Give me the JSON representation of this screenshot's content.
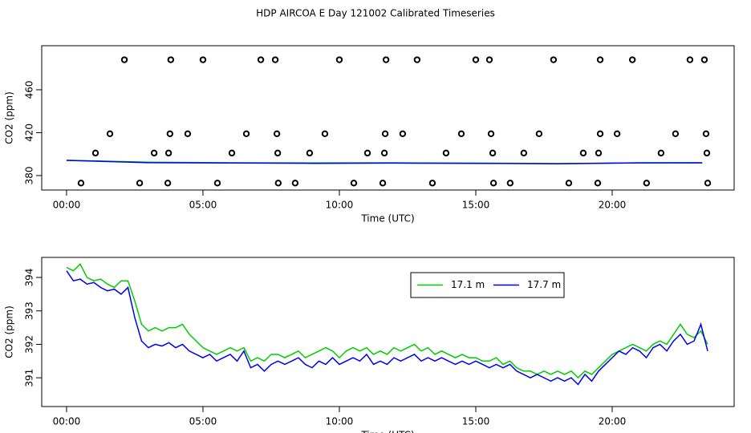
{
  "title": "HDP AIRCOA E  Day 121002  Calibrated Timeseries",
  "chart_data": [
    {
      "type": "line",
      "x_label": "Time (UTC)",
      "y_label": "CO2 (ppm)",
      "xlim": [
        -0.91,
        24.47
      ],
      "ylim": [
        366.5,
        501.1
      ],
      "xticks": [
        {
          "value": 0,
          "label": "00:00"
        },
        {
          "value": 5,
          "label": "05:00"
        },
        {
          "value": 10,
          "label": "10:00"
        },
        {
          "value": 15,
          "label": "15:00"
        },
        {
          "value": 20,
          "label": "20:00"
        }
      ],
      "yticks": [
        380,
        420,
        460
      ],
      "series": [
        {
          "type": "line",
          "color": "#00cc00",
          "x": [
            0,
            3,
            6,
            9,
            12,
            15,
            18,
            21,
            23.3
          ],
          "values": [
            394.3,
            392.5,
            391.9,
            391.8,
            391.9,
            391.6,
            391.2,
            391.9,
            392.0
          ]
        },
        {
          "type": "line",
          "color": "#0000ee",
          "x": [
            0,
            3,
            6,
            9,
            12,
            15,
            18,
            21,
            23.3
          ],
          "values": [
            394.2,
            392.0,
            391.7,
            391.4,
            391.6,
            391.4,
            391.0,
            391.8,
            391.8
          ]
        },
        {
          "type": "scatter",
          "color": "#000000",
          "x": [
            2.12,
            3.82,
            5.0,
            7.12,
            7.65,
            10.0,
            11.71,
            12.85,
            15.0,
            15.5,
            17.85,
            19.56,
            20.74,
            22.85,
            23.38,
            1.59,
            3.79,
            4.44,
            6.59,
            7.71,
            9.47,
            11.68,
            12.32,
            14.47,
            15.56,
            17.32,
            19.56,
            20.18,
            22.32,
            23.44,
            1.06,
            3.21,
            3.74,
            6.06,
            7.74,
            8.91,
            11.03,
            11.65,
            13.91,
            15.62,
            16.76,
            18.94,
            19.5,
            21.79,
            23.47,
            0.53,
            2.68,
            3.71,
            5.53,
            7.76,
            8.38,
            10.53,
            11.59,
            13.41,
            15.65,
            16.26,
            18.41,
            19.47,
            21.26,
            23.5
          ],
          "values": [
            488,
            488,
            488,
            488,
            488,
            488,
            488,
            488,
            488,
            488,
            488,
            488,
            488,
            488,
            488,
            419,
            419,
            419,
            419,
            419,
            419,
            419,
            419,
            419,
            419,
            419,
            419,
            419,
            419,
            419,
            401,
            401,
            401,
            401,
            401,
            401,
            401,
            401,
            401,
            401,
            401,
            401,
            401,
            401,
            401,
            373,
            373,
            373,
            373,
            373,
            373,
            373,
            373,
            373,
            373,
            373,
            373,
            373,
            373,
            373
          ]
        }
      ]
    },
    {
      "type": "line",
      "x_label": "Time (UTC)",
      "y_label": "CO2 (ppm)",
      "legend": true,
      "xlim": [
        -0.91,
        24.47
      ],
      "ylim": [
        390.14,
        394.6
      ],
      "xticks": [
        {
          "value": 0,
          "label": "00:00"
        },
        {
          "value": 5,
          "label": "05:00"
        },
        {
          "value": 10,
          "label": "10:00"
        },
        {
          "value": 15,
          "label": "15:00"
        },
        {
          "value": 20,
          "label": "20:00"
        }
      ],
      "yticks": [
        391,
        392,
        393,
        394
      ],
      "x": [
        0,
        0.25,
        0.5,
        0.75,
        1,
        1.25,
        1.5,
        1.75,
        2,
        2.25,
        2.5,
        2.75,
        3,
        3.25,
        3.5,
        3.75,
        4,
        4.25,
        4.5,
        4.75,
        5,
        5.25,
        5.5,
        5.75,
        6,
        6.25,
        6.5,
        6.75,
        7,
        7.25,
        7.5,
        7.75,
        8,
        8.25,
        8.5,
        8.75,
        9,
        9.25,
        9.5,
        9.75,
        10,
        10.25,
        10.5,
        10.75,
        11,
        11.25,
        11.5,
        11.75,
        12,
        12.25,
        12.5,
        12.75,
        13,
        13.25,
        13.5,
        13.75,
        14,
        14.25,
        14.5,
        14.75,
        15,
        15.25,
        15.5,
        15.75,
        16,
        16.25,
        16.5,
        16.75,
        17,
        17.25,
        17.5,
        17.75,
        18,
        18.25,
        18.5,
        18.75,
        19,
        19.25,
        19.5,
        19.75,
        20,
        20.25,
        20.5,
        20.75,
        21,
        21.25,
        21.5,
        21.75,
        22,
        22.25,
        22.5,
        22.75,
        23,
        23.25,
        23.5
      ],
      "series": [
        {
          "name": "17.1 m",
          "type": "line",
          "color": "#00cc00",
          "values": [
            394.3,
            394.2,
            394.4,
            394.0,
            393.9,
            393.95,
            393.8,
            393.7,
            393.9,
            393.9,
            393.3,
            392.6,
            392.4,
            392.5,
            392.4,
            392.5,
            392.5,
            392.6,
            392.3,
            392.1,
            391.9,
            391.8,
            391.7,
            391.8,
            391.9,
            391.8,
            391.9,
            391.5,
            391.6,
            391.5,
            391.7,
            391.7,
            391.6,
            391.7,
            391.8,
            391.6,
            391.7,
            391.8,
            391.9,
            391.8,
            391.6,
            391.8,
            391.9,
            391.8,
            391.9,
            391.7,
            391.8,
            391.7,
            391.9,
            391.8,
            391.9,
            392.0,
            391.8,
            391.9,
            391.7,
            391.8,
            391.7,
            391.6,
            391.7,
            391.6,
            391.6,
            391.5,
            391.5,
            391.6,
            391.4,
            391.5,
            391.3,
            391.2,
            391.2,
            391.1,
            391.2,
            391.1,
            391.2,
            391.1,
            391.2,
            391.0,
            391.2,
            391.1,
            391.3,
            391.5,
            391.7,
            391.8,
            391.9,
            392.0,
            391.9,
            391.8,
            392.0,
            392.1,
            392.0,
            392.3,
            392.6,
            392.3,
            392.2,
            392.4,
            392.0
          ]
        },
        {
          "name": "17.7 m",
          "type": "line",
          "color": "#0000ee",
          "values": [
            394.2,
            393.9,
            393.95,
            393.8,
            393.85,
            393.7,
            393.6,
            393.65,
            393.5,
            393.7,
            392.8,
            392.1,
            391.9,
            392.0,
            391.95,
            392.05,
            391.9,
            392.0,
            391.8,
            391.7,
            391.6,
            391.7,
            391.5,
            391.6,
            391.7,
            391.5,
            391.8,
            391.3,
            391.4,
            391.2,
            391.4,
            391.5,
            391.4,
            391.5,
            391.6,
            391.4,
            391.3,
            391.5,
            391.4,
            391.6,
            391.4,
            391.5,
            391.6,
            391.5,
            391.7,
            391.4,
            391.5,
            391.4,
            391.6,
            391.5,
            391.6,
            391.7,
            391.5,
            391.6,
            391.5,
            391.6,
            391.5,
            391.4,
            391.5,
            391.4,
            391.5,
            391.4,
            391.3,
            391.4,
            391.3,
            391.4,
            391.2,
            391.1,
            391.0,
            391.1,
            391.0,
            390.9,
            391.0,
            390.9,
            391.0,
            390.8,
            391.1,
            390.9,
            391.2,
            391.4,
            391.6,
            391.8,
            391.7,
            391.9,
            391.8,
            391.6,
            391.9,
            392.0,
            391.8,
            392.1,
            392.3,
            392.0,
            392.1,
            392.6,
            391.8
          ]
        }
      ]
    }
  ]
}
